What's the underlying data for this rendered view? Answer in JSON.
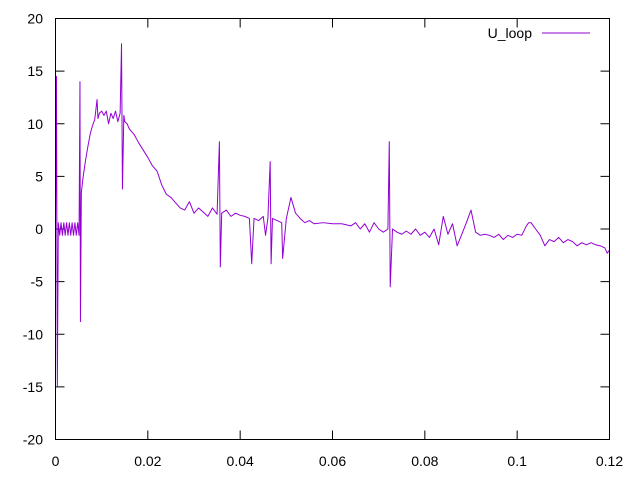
{
  "chart_data": {
    "type": "line",
    "title": "",
    "xlabel": "",
    "ylabel": "",
    "xlim": [
      0,
      0.12
    ],
    "ylim": [
      -20,
      20
    ],
    "xticks": [
      0,
      0.02,
      0.04,
      0.06,
      0.08,
      0.1,
      0.12
    ],
    "xtick_labels": [
      "0",
      "0.02",
      "0.04",
      "0.06",
      "0.08",
      "0.1",
      "0.12"
    ],
    "yticks": [
      -20,
      -15,
      -10,
      -5,
      0,
      5,
      10,
      15,
      20
    ],
    "ytick_labels": [
      "-20",
      "-15",
      "-10",
      "-5",
      "0",
      "5",
      "10",
      "15",
      "20"
    ],
    "grid": false,
    "legend": "top-right",
    "series": [
      {
        "name": "U_loop",
        "color": "#9400d3",
        "points": [
          [
            0.0,
            0.0
          ],
          [
            0.0002,
            14.5
          ],
          [
            0.0004,
            -15.0
          ],
          [
            0.0006,
            0.6
          ],
          [
            0.0009,
            -0.6
          ],
          [
            0.0012,
            0.6
          ],
          [
            0.0015,
            -0.6
          ],
          [
            0.0018,
            0.6
          ],
          [
            0.0021,
            -0.6
          ],
          [
            0.0024,
            0.6
          ],
          [
            0.0027,
            -0.6
          ],
          [
            0.003,
            0.6
          ],
          [
            0.0033,
            -0.6
          ],
          [
            0.0036,
            0.6
          ],
          [
            0.0039,
            -0.6
          ],
          [
            0.0042,
            0.6
          ],
          [
            0.0045,
            -0.6
          ],
          [
            0.0048,
            0.6
          ],
          [
            0.0051,
            -0.6
          ],
          [
            0.0053,
            14.0
          ],
          [
            0.0054,
            -8.8
          ],
          [
            0.0056,
            3.5
          ],
          [
            0.006,
            5.0
          ],
          [
            0.0065,
            6.5
          ],
          [
            0.007,
            7.8
          ],
          [
            0.0075,
            9.0
          ],
          [
            0.008,
            9.8
          ],
          [
            0.0085,
            10.4
          ],
          [
            0.009,
            12.3
          ],
          [
            0.0092,
            10.5
          ],
          [
            0.0095,
            11.0
          ],
          [
            0.01,
            11.2
          ],
          [
            0.0105,
            10.8
          ],
          [
            0.011,
            11.2
          ],
          [
            0.0115,
            10.0
          ],
          [
            0.012,
            11.0
          ],
          [
            0.0125,
            10.5
          ],
          [
            0.013,
            11.2
          ],
          [
            0.0135,
            10.2
          ],
          [
            0.014,
            11.0
          ],
          [
            0.0143,
            17.6
          ],
          [
            0.0145,
            3.8
          ],
          [
            0.0148,
            10.8
          ],
          [
            0.015,
            10.2
          ],
          [
            0.0155,
            10.0
          ],
          [
            0.016,
            9.5
          ],
          [
            0.017,
            9.0
          ],
          [
            0.018,
            8.2
          ],
          [
            0.019,
            7.5
          ],
          [
            0.02,
            6.8
          ],
          [
            0.021,
            6.0
          ],
          [
            0.022,
            5.5
          ],
          [
            0.023,
            4.2
          ],
          [
            0.024,
            3.3
          ],
          [
            0.025,
            3.0
          ],
          [
            0.026,
            2.5
          ],
          [
            0.027,
            2.0
          ],
          [
            0.028,
            1.8
          ],
          [
            0.029,
            2.6
          ],
          [
            0.03,
            1.5
          ],
          [
            0.031,
            2.0
          ],
          [
            0.032,
            1.6
          ],
          [
            0.033,
            1.2
          ],
          [
            0.034,
            2.0
          ],
          [
            0.035,
            1.4
          ],
          [
            0.0355,
            8.3
          ],
          [
            0.0357,
            -3.6
          ],
          [
            0.036,
            1.5
          ],
          [
            0.037,
            1.8
          ],
          [
            0.038,
            1.2
          ],
          [
            0.039,
            1.5
          ],
          [
            0.04,
            1.3
          ],
          [
            0.041,
            1.2
          ],
          [
            0.042,
            1.0
          ],
          [
            0.0425,
            -3.3
          ],
          [
            0.043,
            1.0
          ],
          [
            0.044,
            0.8
          ],
          [
            0.045,
            1.2
          ],
          [
            0.0455,
            -0.6
          ],
          [
            0.046,
            1.0
          ],
          [
            0.0465,
            6.4
          ],
          [
            0.0467,
            -3.3
          ],
          [
            0.047,
            1.0
          ],
          [
            0.048,
            0.8
          ],
          [
            0.049,
            0.6
          ],
          [
            0.0492,
            -2.8
          ],
          [
            0.05,
            1.0
          ],
          [
            0.051,
            3.0
          ],
          [
            0.052,
            1.5
          ],
          [
            0.053,
            1.0
          ],
          [
            0.054,
            0.6
          ],
          [
            0.055,
            0.8
          ],
          [
            0.056,
            0.5
          ],
          [
            0.058,
            0.6
          ],
          [
            0.06,
            0.5
          ],
          [
            0.062,
            0.5
          ],
          [
            0.064,
            0.3
          ],
          [
            0.065,
            0.6
          ],
          [
            0.066,
            0.0
          ],
          [
            0.067,
            0.5
          ],
          [
            0.068,
            -0.3
          ],
          [
            0.069,
            0.6
          ],
          [
            0.07,
            0.0
          ],
          [
            0.071,
            -0.3
          ],
          [
            0.072,
            0.0
          ],
          [
            0.0723,
            8.3
          ],
          [
            0.0725,
            -5.5
          ],
          [
            0.073,
            0.0
          ],
          [
            0.074,
            -0.3
          ],
          [
            0.075,
            -0.5
          ],
          [
            0.076,
            -0.2
          ],
          [
            0.077,
            -0.5
          ],
          [
            0.078,
            0.0
          ],
          [
            0.079,
            -0.6
          ],
          [
            0.08,
            -0.3
          ],
          [
            0.081,
            -0.8
          ],
          [
            0.082,
            0.0
          ],
          [
            0.083,
            -1.5
          ],
          [
            0.084,
            1.2
          ],
          [
            0.085,
            -0.5
          ],
          [
            0.086,
            0.5
          ],
          [
            0.087,
            -1.6
          ],
          [
            0.088,
            -0.5
          ],
          [
            0.089,
            0.6
          ],
          [
            0.09,
            1.8
          ],
          [
            0.091,
            -0.3
          ],
          [
            0.092,
            -0.6
          ],
          [
            0.093,
            -0.5
          ],
          [
            0.094,
            -0.6
          ],
          [
            0.095,
            -0.8
          ],
          [
            0.096,
            -0.5
          ],
          [
            0.097,
            -1.0
          ],
          [
            0.098,
            -0.6
          ],
          [
            0.099,
            -0.8
          ],
          [
            0.1,
            -0.5
          ],
          [
            0.101,
            -0.6
          ],
          [
            0.102,
            0.3
          ],
          [
            0.1025,
            0.6
          ],
          [
            0.103,
            0.6
          ],
          [
            0.104,
            0.0
          ],
          [
            0.105,
            -0.6
          ],
          [
            0.106,
            -1.6
          ],
          [
            0.107,
            -1.0
          ],
          [
            0.108,
            -1.2
          ],
          [
            0.109,
            -0.8
          ],
          [
            0.11,
            -1.3
          ],
          [
            0.111,
            -1.0
          ],
          [
            0.112,
            -1.2
          ],
          [
            0.113,
            -1.6
          ],
          [
            0.114,
            -1.3
          ],
          [
            0.115,
            -1.5
          ],
          [
            0.116,
            -1.3
          ],
          [
            0.117,
            -1.5
          ],
          [
            0.118,
            -1.6
          ],
          [
            0.119,
            -1.8
          ],
          [
            0.1195,
            -2.3
          ],
          [
            0.12,
            -2.0
          ]
        ]
      }
    ]
  }
}
